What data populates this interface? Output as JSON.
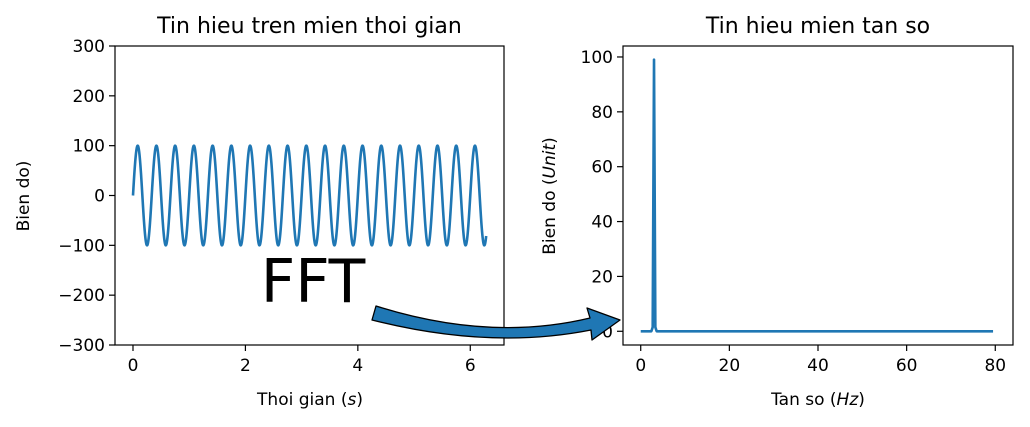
{
  "figure": {
    "left_title": "Tin hieu tren mien thoi gian",
    "right_title": "Tin hieu mien tan so",
    "annotation": "FFT"
  },
  "chart_data": [
    {
      "type": "line",
      "title": "Tin hieu tren mien thoi gian",
      "xlabel": "Thoi gian (s)",
      "ylabel": "Bien do)",
      "xlim": [
        -0.32,
        6.6
      ],
      "ylim": [
        -300,
        300
      ],
      "xticks": [
        0,
        2,
        4,
        6
      ],
      "xtick_labels": [
        "0",
        "2",
        "4",
        "6"
      ],
      "yticks": [
        -300,
        -200,
        -100,
        0,
        100,
        200,
        300
      ],
      "ytick_labels": [
        "−300",
        "−200",
        "−100",
        "0",
        "100",
        "200",
        "300"
      ],
      "grid": false,
      "series": [
        {
          "amplitude": 100,
          "frequency_hz": 3,
          "x_range": [
            0,
            6.283
          ],
          "color": "#1f77b4"
        }
      ]
    },
    {
      "type": "line",
      "title": "Tin hieu mien tan so",
      "xlabel": "Tan so (Hz)",
      "ylabel": "Bien do (Unit)",
      "xlim": [
        -4,
        84
      ],
      "ylim": [
        -5,
        104
      ],
      "xticks": [
        0,
        20,
        40,
        60,
        80
      ],
      "xtick_labels": [
        "0",
        "20",
        "40",
        "60",
        "80"
      ],
      "yticks": [
        0,
        20,
        40,
        60,
        80,
        100
      ],
      "ytick_labels": [
        "0",
        "20",
        "40",
        "60",
        "80",
        "100"
      ],
      "grid": false,
      "series": [
        {
          "x": [
            0,
            2.4,
            2.7,
            3.0,
            3.3,
            3.6,
            79.5
          ],
          "values": [
            0,
            0,
            1.5,
            99,
            1.5,
            0,
            0
          ],
          "color": "#1f77b4"
        }
      ]
    }
  ]
}
